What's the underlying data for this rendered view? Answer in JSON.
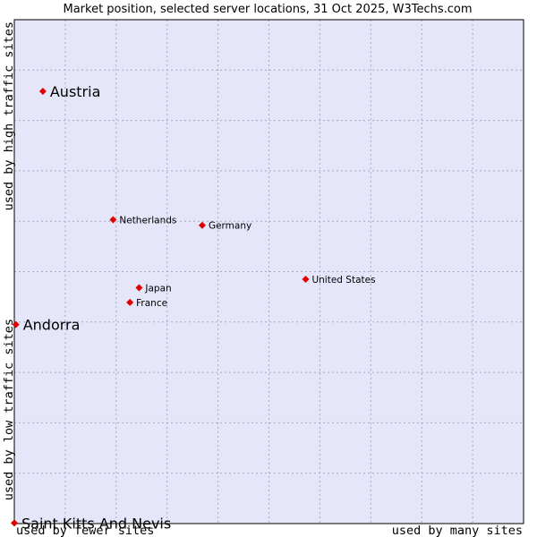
{
  "chart_data": {
    "type": "scatter",
    "title": "Market position, selected server locations, 31 Oct 2025, W3Techs.com",
    "xlabel_left": "used by fewer sites",
    "xlabel_right": "used by many sites",
    "ylabel_top": "used by high traffic sites",
    "ylabel_bottom": "used by low traffic sites",
    "xlim": [
      0,
      100
    ],
    "ylim": [
      0,
      100
    ],
    "grid": true,
    "colors": {
      "plot_bg": "#e6e6fa",
      "grid": "#a8a8c8",
      "point": "#e00000",
      "frame": "#000000"
    },
    "points": [
      {
        "name": "Austria",
        "x": 5.6,
        "y": 85.8,
        "size": "large"
      },
      {
        "name": "Netherlands",
        "x": 19.4,
        "y": 60.3,
        "size": "small"
      },
      {
        "name": "Germany",
        "x": 36.9,
        "y": 59.2,
        "size": "small"
      },
      {
        "name": "United States",
        "x": 57.2,
        "y": 48.5,
        "size": "small"
      },
      {
        "name": "Japan",
        "x": 24.5,
        "y": 46.8,
        "size": "small"
      },
      {
        "name": "France",
        "x": 22.7,
        "y": 43.9,
        "size": "small"
      },
      {
        "name": "Andorra",
        "x": 0.3,
        "y": 39.5,
        "size": "large"
      },
      {
        "name": "Saint Kitts And Nevis",
        "x": 0.0,
        "y": 0.1,
        "size": "large"
      }
    ]
  }
}
